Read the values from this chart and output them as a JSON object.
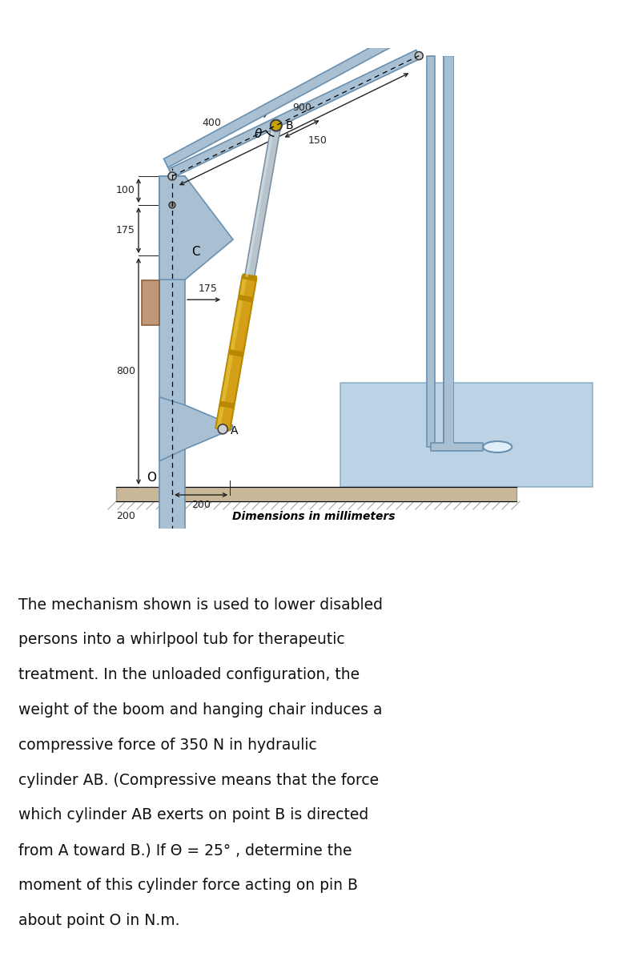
{
  "bg_color": "#ffffff",
  "diagram_title": "Dimensions in millimeters",
  "problem_text": [
    "The mechanism shown is used to lower disabled",
    "persons into a whirlpool tub for therapeutic",
    "treatment. In the unloaded configuration, the",
    "weight of the boom and hanging chair induces a",
    "compressive force of 350 N in hydraulic",
    "cylinder AB. (Compressive means that the force",
    "which cylinder AB exerts on point B is directed",
    "from A toward B.) If Θ = 25° , determine the",
    "moment of this cylinder force acting on pin B",
    "about point O in N.m."
  ],
  "colors": {
    "steel_blue": "#a8c0d2",
    "steel_dark": "#6a90b0",
    "steel_mid": "#88aac0",
    "cylinder_yellow": "#d4a017",
    "cylinder_gold": "#b88800",
    "cylinder_silver": "#b8c4cc",
    "cylinder_silver_dark": "#8090a0",
    "bracket_brown": "#c09878",
    "tub_blue": "#b0cce0",
    "ground_tan": "#c8b898",
    "pin_dark": "#404040",
    "dim_color": "#222222"
  }
}
